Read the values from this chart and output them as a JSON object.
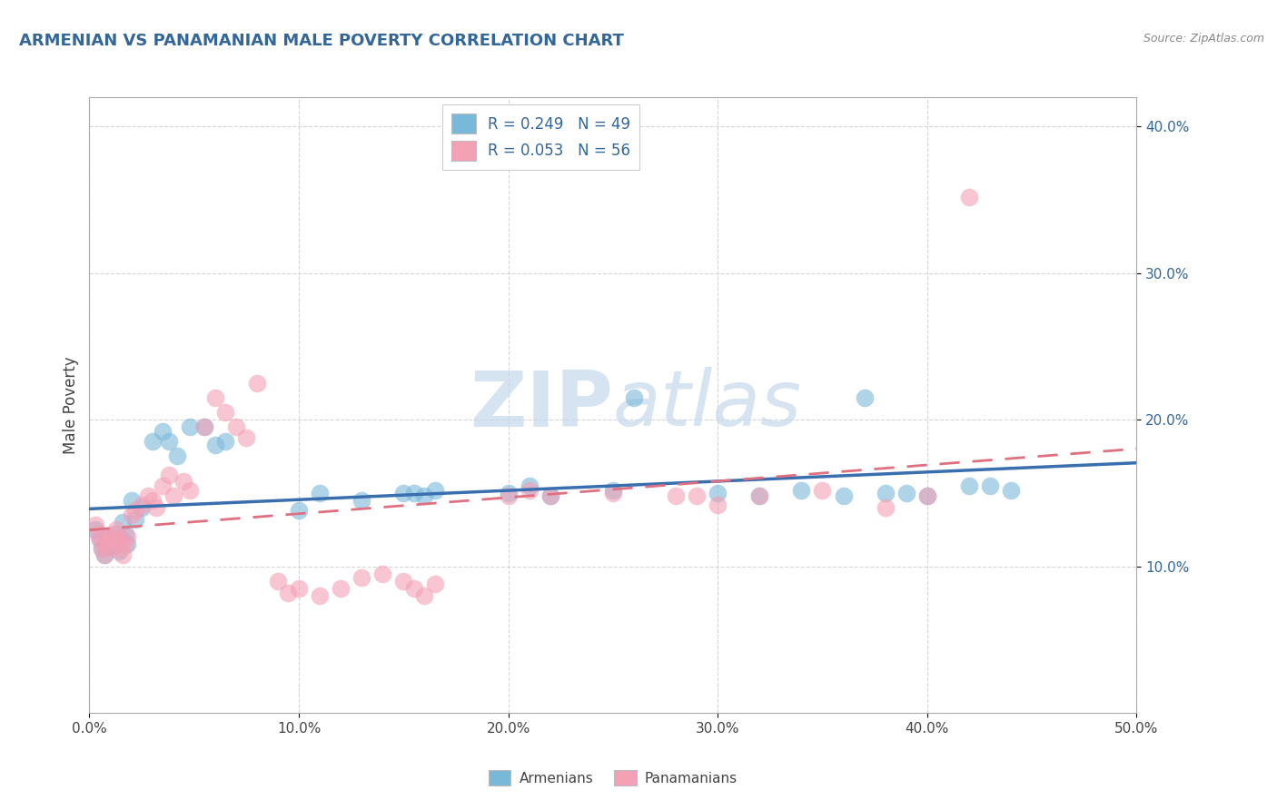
{
  "title": "ARMENIAN VS PANAMANIAN MALE POVERTY CORRELATION CHART",
  "source": "Source: ZipAtlas.com",
  "ylabel": "Male Poverty",
  "xlim": [
    0.0,
    0.5
  ],
  "ylim": [
    0.0,
    0.42
  ],
  "xticks": [
    0.0,
    0.1,
    0.2,
    0.3,
    0.4,
    0.5
  ],
  "yticks": [
    0.1,
    0.2,
    0.3,
    0.4
  ],
  "xtick_labels": [
    "0.0%",
    "10.0%",
    "20.0%",
    "30.0%",
    "40.0%",
    "50.0%"
  ],
  "ytick_labels": [
    "10.0%",
    "20.0%",
    "30.0%",
    "40.0%"
  ],
  "armenian_color": "#7ab8d9",
  "panamanian_color": "#f4a0b5",
  "armenian_line_color": "#3a6faf",
  "panamanian_line_color": "#e07080",
  "R_armenian": 0.249,
  "N_armenian": 49,
  "R_panamanian": 0.053,
  "N_panamanian": 56,
  "watermark_zip": "ZIP",
  "watermark_atlas": "atlas",
  "background_color": "#ffffff",
  "grid_color": "#cccccc",
  "title_color": "#336699",
  "label_color": "#336699",
  "armenian_x": [
    0.003,
    0.005,
    0.006,
    0.007,
    0.008,
    0.009,
    0.01,
    0.011,
    0.012,
    0.013,
    0.014,
    0.015,
    0.016,
    0.017,
    0.018,
    0.02,
    0.022,
    0.025,
    0.03,
    0.035,
    0.038,
    0.042,
    0.048,
    0.055,
    0.06,
    0.065,
    0.1,
    0.11,
    0.13,
    0.15,
    0.155,
    0.16,
    0.165,
    0.2,
    0.21,
    0.22,
    0.25,
    0.26,
    0.3,
    0.32,
    0.34,
    0.36,
    0.37,
    0.38,
    0.39,
    0.4,
    0.42,
    0.43,
    0.44
  ],
  "armenian_y": [
    0.125,
    0.118,
    0.112,
    0.108,
    0.115,
    0.12,
    0.113,
    0.118,
    0.122,
    0.115,
    0.11,
    0.118,
    0.13,
    0.122,
    0.115,
    0.145,
    0.132,
    0.14,
    0.185,
    0.192,
    0.185,
    0.175,
    0.195,
    0.195,
    0.183,
    0.185,
    0.138,
    0.15,
    0.145,
    0.15,
    0.15,
    0.148,
    0.152,
    0.15,
    0.155,
    0.148,
    0.152,
    0.215,
    0.15,
    0.148,
    0.152,
    0.148,
    0.215,
    0.15,
    0.15,
    0.148,
    0.155,
    0.155,
    0.152
  ],
  "panamanian_x": [
    0.003,
    0.004,
    0.005,
    0.006,
    0.007,
    0.008,
    0.009,
    0.01,
    0.011,
    0.012,
    0.013,
    0.014,
    0.015,
    0.016,
    0.017,
    0.018,
    0.02,
    0.022,
    0.025,
    0.028,
    0.03,
    0.032,
    0.035,
    0.038,
    0.04,
    0.045,
    0.048,
    0.055,
    0.06,
    0.065,
    0.07,
    0.075,
    0.08,
    0.09,
    0.095,
    0.1,
    0.11,
    0.12,
    0.13,
    0.14,
    0.15,
    0.155,
    0.16,
    0.165,
    0.2,
    0.21,
    0.22,
    0.25,
    0.28,
    0.29,
    0.3,
    0.32,
    0.35,
    0.38,
    0.4,
    0.42
  ],
  "panamanian_y": [
    0.128,
    0.122,
    0.118,
    0.112,
    0.108,
    0.115,
    0.12,
    0.113,
    0.118,
    0.122,
    0.125,
    0.118,
    0.112,
    0.108,
    0.115,
    0.12,
    0.135,
    0.138,
    0.142,
    0.148,
    0.145,
    0.14,
    0.155,
    0.162,
    0.148,
    0.158,
    0.152,
    0.195,
    0.215,
    0.205,
    0.195,
    0.188,
    0.225,
    0.09,
    0.082,
    0.085,
    0.08,
    0.085,
    0.092,
    0.095,
    0.09,
    0.085,
    0.08,
    0.088,
    0.148,
    0.152,
    0.148,
    0.15,
    0.148,
    0.148,
    0.142,
    0.148,
    0.152,
    0.14,
    0.148,
    0.352
  ]
}
